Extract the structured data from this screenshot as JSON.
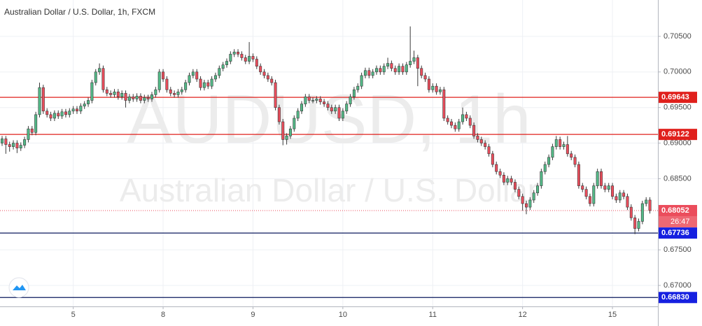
{
  "chart_data": {
    "type": "candlestick",
    "title": "Australian Dollar / U.S. Dollar, 1h, FXCM",
    "watermark": {
      "symbol": "AUDUSD, 1h",
      "description": "Australian Dollar / U.S. Dollar"
    },
    "up_color": "#53b987",
    "down_color": "#eb4d5c",
    "grid": true,
    "ylim": [
      0.66705,
      0.71011
    ],
    "yticks": [
      {
        "value": 0.67,
        "label": "0.67000"
      },
      {
        "value": 0.675,
        "label": "0.67500"
      },
      {
        "value": 0.685,
        "label": "0.68500"
      },
      {
        "value": 0.69,
        "label": "0.69000"
      },
      {
        "value": 0.695,
        "label": "0.69500"
      },
      {
        "value": 0.7,
        "label": "0.70000"
      },
      {
        "value": 0.705,
        "label": "0.70500"
      }
    ],
    "levels": [
      {
        "value": 0.69643,
        "line_color": "#e0201c",
        "box_color": "#e0201c"
      },
      {
        "value": 0.69122,
        "line_color": "#e0201c",
        "box_color": "#e0201c"
      },
      {
        "value": 0.67736,
        "line_color": "#0b1a5e",
        "box_color": "#1620e0"
      },
      {
        "value": 0.6683,
        "label": "0.66830",
        "line_color": "#0b1a5e",
        "box_color": "#1620e0"
      }
    ],
    "countdown": "26:47",
    "categories": [
      null,
      null,
      null,
      null,
      null,
      null,
      null,
      null,
      null,
      null,
      null,
      null,
      null,
      null,
      null,
      null,
      null,
      null,
      null,
      "5",
      null,
      null,
      null,
      null,
      null,
      null,
      null,
      null,
      null,
      null,
      null,
      null,
      null,
      null,
      null,
      null,
      null,
      null,
      null,
      null,
      null,
      null,
      null,
      "8",
      null,
      null,
      null,
      null,
      null,
      null,
      null,
      null,
      null,
      null,
      null,
      null,
      null,
      null,
      null,
      null,
      null,
      null,
      null,
      null,
      null,
      null,
      null,
      "9",
      null,
      null,
      null,
      null,
      null,
      null,
      null,
      null,
      null,
      null,
      null,
      null,
      null,
      null,
      null,
      null,
      null,
      null,
      null,
      null,
      null,
      null,
      null,
      "10",
      null,
      null,
      null,
      null,
      null,
      null,
      null,
      null,
      null,
      null,
      null,
      null,
      null,
      null,
      null,
      null,
      null,
      null,
      null,
      null,
      null,
      null,
      null,
      "11",
      null,
      null,
      null,
      null,
      null,
      null,
      null,
      null,
      null,
      null,
      null,
      null,
      null,
      null,
      null,
      null,
      null,
      null,
      null,
      null,
      null,
      null,
      null,
      "12",
      null,
      null,
      null,
      null,
      null,
      null,
      null,
      null,
      null,
      null,
      null,
      null,
      null,
      null,
      null,
      null,
      null,
      null,
      null,
      null,
      null,
      null,
      null,
      "15",
      null,
      null,
      null,
      null,
      null,
      null,
      null,
      null,
      null,
      null
    ],
    "open": [
      0.69,
      0.6906,
      0.6898,
      0.6895,
      0.69,
      0.6893,
      0.6897,
      0.6905,
      0.692,
      0.6915,
      0.694,
      0.6978,
      0.6945,
      0.694,
      0.6935,
      0.6942,
      0.6938,
      0.6944,
      0.694,
      0.6945,
      0.6948,
      0.6945,
      0.6952,
      0.6955,
      0.696,
      0.6985,
      0.7,
      0.7005,
      0.6975,
      0.697,
      0.6968,
      0.6972,
      0.6965,
      0.697,
      0.696,
      0.6965,
      0.6962,
      0.6966,
      0.696,
      0.6964,
      0.6962,
      0.6968,
      0.6975,
      0.7,
      0.699,
      0.6975,
      0.697,
      0.6968,
      0.6972,
      0.6975,
      0.6985,
      0.6995,
      0.7,
      0.699,
      0.6978,
      0.6985,
      0.698,
      0.699,
      0.6995,
      0.7005,
      0.701,
      0.7015,
      0.7025,
      0.7028,
      0.7025,
      0.702,
      0.7015,
      0.7022,
      0.7018,
      0.7008,
      0.7,
      0.6995,
      0.699,
      0.6985,
      0.695,
      0.693,
      0.6905,
      0.691,
      0.692,
      0.6935,
      0.6945,
      0.6955,
      0.6965,
      0.696,
      0.696,
      0.6962,
      0.6958,
      0.6955,
      0.695,
      0.6945,
      0.695,
      0.6935,
      0.6945,
      0.6955,
      0.6965,
      0.6975,
      0.698,
      0.6995,
      0.7002,
      0.6995,
      0.7,
      0.7005,
      0.7,
      0.7008,
      0.7012,
      0.7005,
      0.7,
      0.7008,
      0.7,
      0.701,
      0.7015,
      0.702,
      0.7005,
      0.6995,
      0.699,
      0.6975,
      0.698,
      0.6972,
      0.6975,
      0.6935,
      0.693,
      0.6925,
      0.692,
      0.693,
      0.694,
      0.6935,
      0.6925,
      0.691,
      0.6905,
      0.69,
      0.6895,
      0.6885,
      0.687,
      0.686,
      0.6855,
      0.6845,
      0.685,
      0.6845,
      0.6835,
      0.6825,
      0.6815,
      0.681,
      0.682,
      0.683,
      0.684,
      0.686,
      0.687,
      0.688,
      0.6895,
      0.6905,
      0.6895,
      0.6898,
      0.6885,
      0.688,
      0.687,
      0.684,
      0.6835,
      0.6825,
      0.6815,
      0.684,
      0.686,
      0.684,
      0.6835,
      0.684,
      0.6825,
      0.682,
      0.683,
      0.6825,
      0.681,
      0.6795,
      0.678,
      0.679,
      0.6815,
      0.682
    ],
    "high": [
      0.691,
      0.691,
      0.6902,
      0.6904,
      0.6904,
      0.6901,
      0.6909,
      0.6924,
      0.6924,
      0.6944,
      0.6985,
      0.6982,
      0.6949,
      0.6944,
      0.6946,
      0.6946,
      0.6948,
      0.6948,
      0.6949,
      0.6952,
      0.6952,
      0.6956,
      0.6959,
      0.6964,
      0.6989,
      0.7004,
      0.7012,
      0.7009,
      0.6979,
      0.6974,
      0.6976,
      0.6976,
      0.6974,
      0.6974,
      0.6969,
      0.6969,
      0.697,
      0.697,
      0.6968,
      0.6968,
      0.6972,
      0.6979,
      0.7004,
      0.7004,
      0.6994,
      0.6979,
      0.6974,
      0.6976,
      0.6979,
      0.6989,
      0.6999,
      0.7004,
      0.7004,
      0.6994,
      0.6989,
      0.6989,
      0.6994,
      0.6999,
      0.7009,
      0.7014,
      0.7019,
      0.7029,
      0.7032,
      0.7032,
      0.7029,
      0.7024,
      0.7042,
      0.7026,
      0.7022,
      0.7012,
      0.7004,
      0.6999,
      0.6994,
      0.6989,
      0.6954,
      0.6934,
      0.6914,
      0.6924,
      0.6939,
      0.6949,
      0.6959,
      0.6969,
      0.6969,
      0.6964,
      0.6966,
      0.6966,
      0.6962,
      0.6959,
      0.6954,
      0.6954,
      0.6954,
      0.6949,
      0.6959,
      0.6969,
      0.6979,
      0.6984,
      0.6999,
      0.7006,
      0.7006,
      0.7004,
      0.7009,
      0.7009,
      0.7012,
      0.702,
      0.7016,
      0.7009,
      0.7012,
      0.7012,
      0.7014,
      0.7064,
      0.703,
      0.7024,
      0.7009,
      0.6999,
      0.6994,
      0.6984,
      0.6984,
      0.6979,
      0.6979,
      0.6939,
      0.6934,
      0.6929,
      0.6934,
      0.695,
      0.6944,
      0.6939,
      0.6929,
      0.6914,
      0.6909,
      0.6904,
      0.6899,
      0.6889,
      0.6874,
      0.6864,
      0.6859,
      0.6854,
      0.6854,
      0.6849,
      0.6839,
      0.6829,
      0.6819,
      0.6824,
      0.6834,
      0.6844,
      0.6864,
      0.6874,
      0.6884,
      0.6899,
      0.691,
      0.6909,
      0.6902,
      0.691,
      0.6889,
      0.6884,
      0.6874,
      0.6844,
      0.6839,
      0.6829,
      0.6844,
      0.6864,
      0.6864,
      0.6844,
      0.6844,
      0.6844,
      0.6829,
      0.6834,
      0.6834,
      0.6829,
      0.6814,
      0.6799,
      0.6794,
      0.6819,
      0.6824,
      0.6824
    ],
    "low": [
      0.6896,
      0.6885,
      0.6888,
      0.6891,
      0.6886,
      0.6889,
      0.6893,
      0.6901,
      0.6911,
      0.6911,
      0.6936,
      0.6941,
      0.6936,
      0.6931,
      0.6931,
      0.6934,
      0.6934,
      0.6936,
      0.6936,
      0.6941,
      0.6941,
      0.6941,
      0.6948,
      0.6951,
      0.6956,
      0.6981,
      0.6996,
      0.6971,
      0.6966,
      0.6964,
      0.6964,
      0.6961,
      0.6961,
      0.695,
      0.6956,
      0.6958,
      0.6958,
      0.6956,
      0.6956,
      0.6958,
      0.6958,
      0.6964,
      0.6971,
      0.6986,
      0.6971,
      0.6966,
      0.6964,
      0.6964,
      0.6968,
      0.6971,
      0.6981,
      0.6991,
      0.6986,
      0.6974,
      0.6974,
      0.6976,
      0.6976,
      0.6986,
      0.6991,
      0.7001,
      0.7006,
      0.7011,
      0.7021,
      0.7021,
      0.7016,
      0.7011,
      0.7011,
      0.7014,
      0.7004,
      0.6996,
      0.6991,
      0.6986,
      0.6981,
      0.6946,
      0.6926,
      0.6897,
      0.6898,
      0.6906,
      0.6916,
      0.6931,
      0.6941,
      0.6951,
      0.6956,
      0.6956,
      0.6956,
      0.6954,
      0.6951,
      0.6946,
      0.6941,
      0.6941,
      0.6931,
      0.6931,
      0.6941,
      0.6951,
      0.6961,
      0.6971,
      0.6976,
      0.6991,
      0.6991,
      0.6991,
      0.6996,
      0.6996,
      0.6996,
      0.7004,
      0.7001,
      0.6996,
      0.6996,
      0.6996,
      0.6996,
      0.7006,
      0.7011,
      0.698,
      0.6991,
      0.6986,
      0.6971,
      0.6971,
      0.6968,
      0.6968,
      0.6931,
      0.6926,
      0.6921,
      0.6916,
      0.6916,
      0.6926,
      0.6931,
      0.6921,
      0.6906,
      0.6901,
      0.6896,
      0.6891,
      0.6881,
      0.6866,
      0.6856,
      0.6851,
      0.6841,
      0.6841,
      0.6841,
      0.6831,
      0.6821,
      0.6805,
      0.68,
      0.6806,
      0.6816,
      0.6826,
      0.6836,
      0.6856,
      0.6866,
      0.6876,
      0.6891,
      0.6891,
      0.6891,
      0.6881,
      0.6876,
      0.6866,
      0.6836,
      0.6831,
      0.6821,
      0.6811,
      0.6811,
      0.6836,
      0.6836,
      0.6831,
      0.6831,
      0.6821,
      0.6816,
      0.6816,
      0.6821,
      0.6806,
      0.6791,
      0.6772,
      0.6776,
      0.6786,
      0.6811,
      0.6801
    ],
    "close": [
      0.6906,
      0.6898,
      0.6895,
      0.69,
      0.6893,
      0.6897,
      0.6905,
      0.692,
      0.6915,
      0.694,
      0.6978,
      0.6945,
      0.694,
      0.6935,
      0.6942,
      0.6938,
      0.6944,
      0.694,
      0.6945,
      0.6948,
      0.6945,
      0.6952,
      0.6955,
      0.696,
      0.6985,
      0.7,
      0.7005,
      0.6975,
      0.697,
      0.6968,
      0.6972,
      0.6965,
      0.697,
      0.696,
      0.6965,
      0.6962,
      0.6966,
      0.696,
      0.6964,
      0.6962,
      0.6968,
      0.6975,
      0.7,
      0.699,
      0.6975,
      0.697,
      0.6968,
      0.6972,
      0.6975,
      0.6985,
      0.6995,
      0.7,
      0.699,
      0.6978,
      0.6985,
      0.698,
      0.699,
      0.6995,
      0.7005,
      0.701,
      0.7015,
      0.7025,
      0.7028,
      0.7025,
      0.702,
      0.7015,
      0.7022,
      0.7018,
      0.7008,
      0.7,
      0.6995,
      0.699,
      0.6985,
      0.695,
      0.693,
      0.6905,
      0.691,
      0.692,
      0.6935,
      0.6945,
      0.6955,
      0.6965,
      0.696,
      0.696,
      0.6962,
      0.6958,
      0.6955,
      0.695,
      0.6945,
      0.695,
      0.6935,
      0.6945,
      0.6955,
      0.6965,
      0.6975,
      0.698,
      0.6995,
      0.7002,
      0.6995,
      0.7,
      0.7005,
      0.7,
      0.7008,
      0.7012,
      0.7005,
      0.7,
      0.7008,
      0.7,
      0.701,
      0.7015,
      0.702,
      0.7005,
      0.6995,
      0.699,
      0.6975,
      0.698,
      0.6972,
      0.6975,
      0.6935,
      0.693,
      0.6925,
      0.692,
      0.693,
      0.694,
      0.6935,
      0.6925,
      0.691,
      0.6905,
      0.69,
      0.6895,
      0.6885,
      0.687,
      0.686,
      0.6855,
      0.6845,
      0.685,
      0.6845,
      0.6835,
      0.6825,
      0.6815,
      0.681,
      0.682,
      0.683,
      0.684,
      0.686,
      0.687,
      0.688,
      0.6895,
      0.6905,
      0.6895,
      0.6898,
      0.6885,
      0.688,
      0.687,
      0.684,
      0.6835,
      0.6825,
      0.6815,
      0.684,
      0.686,
      0.684,
      0.6835,
      0.684,
      0.6825,
      0.682,
      0.683,
      0.6825,
      0.681,
      0.6795,
      0.678,
      0.679,
      0.6815,
      0.682,
      0.68052
    ]
  }
}
